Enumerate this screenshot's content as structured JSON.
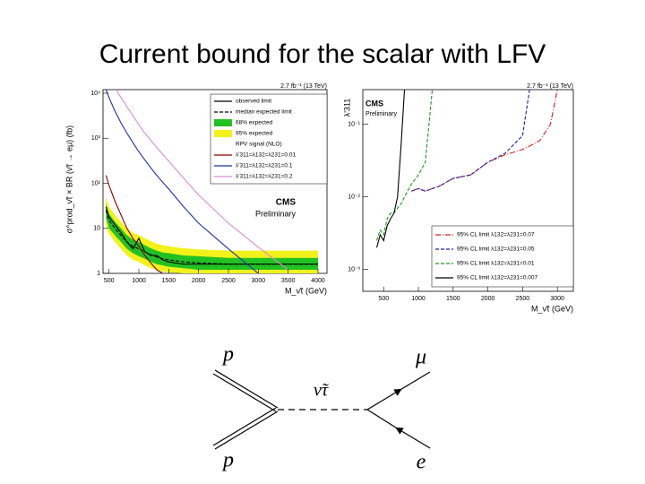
{
  "title": "Current bound for the scalar with LFV",
  "chart_data": [
    {
      "type": "line",
      "log_y": true,
      "x_label": "M_ν̃τ (GeV)",
      "y_label": "σ^prod_ν̃τ × BR (ν̃τ → eμ) (fb)",
      "annotations": [
        "2.7 fb⁻¹ (13 TeV)",
        "CMS",
        "Preliminary"
      ],
      "legend_note": "RPV signal (NLO)",
      "xlim": [
        400,
        4150
      ],
      "xticks": [
        500,
        1000,
        1500,
        2000,
        2500,
        3000,
        3500,
        4000
      ],
      "ylim": [
        1,
        12000
      ],
      "yticks": [
        1,
        10,
        {
          "value": 100,
          "label": "10²"
        },
        {
          "value": 1000,
          "label": "10³"
        },
        {
          "value": 10000,
          "label": "10⁴"
        }
      ],
      "x": [
        450,
        500,
        600,
        700,
        800,
        900,
        1000,
        1100,
        1200,
        1300,
        1400,
        1500,
        1750,
        2000,
        2500,
        3000,
        3500,
        4000
      ],
      "series": [
        {
          "name": "observed limit",
          "color": "#000000",
          "style": "solid",
          "values": [
            30,
            18,
            12,
            8,
            5,
            3.5,
            6,
            3,
            2.5,
            2.5,
            2,
            1.8,
            1.6,
            1.6,
            1.6,
            1.6,
            1.6,
            1.6
          ]
        },
        {
          "name": "median expected limit",
          "color": "#000000",
          "style": "dashed",
          "values": [
            25,
            15,
            10,
            7,
            5,
            4,
            3.5,
            3,
            2.6,
            2.3,
            2.1,
            2,
            1.8,
            1.7,
            1.6,
            1.6,
            1.6,
            1.6
          ]
        },
        {
          "name": "68% expected",
          "color": "#22c122",
          "style": "band",
          "lower": [
            17,
            10,
            7,
            5,
            3.5,
            2.8,
            2.4,
            2.1,
            1.8,
            1.6,
            1.5,
            1.4,
            1.3,
            1.2,
            1.2,
            1.2,
            1.2,
            1.2
          ],
          "upper": [
            35,
            21,
            14,
            10,
            7,
            5.6,
            5,
            4.2,
            3.6,
            3.2,
            2.9,
            2.8,
            2.5,
            2.4,
            2.2,
            2.2,
            2.2,
            2.2
          ]
        },
        {
          "name": "95% expected",
          "color": "#f2f21a",
          "style": "band",
          "lower": [
            12,
            7.5,
            5,
            3.5,
            2.5,
            2,
            1.8,
            1.5,
            1.3,
            1.2,
            1.1,
            1.05,
            1,
            1,
            1,
            1,
            1,
            1
          ],
          "upper": [
            50,
            30,
            20,
            14,
            10,
            8,
            7,
            6,
            5.2,
            4.6,
            4.2,
            4,
            3.6,
            3.4,
            3.2,
            3.2,
            3.2,
            3.2
          ]
        },
        {
          "name": "λ'311=λ132=λ231=0.01",
          "color": "#8b0000",
          "style": "solid",
          "values": [
            150,
            90,
            40,
            20,
            10,
            6,
            4,
            2.5,
            1.7,
            1.2,
            1,
            null,
            null,
            null,
            null,
            null,
            null,
            null
          ]
        },
        {
          "name": "λ'311=λ132=λ231=0.1",
          "color": "#1f2fa8",
          "style": "solid",
          "values": [
            12000,
            8000,
            4000,
            2200,
            1300,
            800,
            500,
            330,
            220,
            150,
            105,
            75,
            30,
            13,
            3.5,
            1,
            null,
            null
          ]
        },
        {
          "name": "λ'311=λ132=λ231=0.2",
          "color": "#d68fd6",
          "style": "solid",
          "values": [
            null,
            null,
            13000,
            8000,
            5000,
            3200,
            2000,
            1300,
            900,
            620,
            440,
            310,
            130,
            55,
            13,
            3.8,
            1.2,
            null
          ]
        }
      ]
    },
    {
      "type": "line",
      "log_y": true,
      "x_label": "M_ν̃τ (GeV)",
      "y_label": "λ'311",
      "annotations": [
        "2.7 fb⁻¹ (13 TeV)",
        "CMS",
        "Preliminary"
      ],
      "xlim": [
        200,
        3230
      ],
      "xticks": [
        500,
        1000,
        1500,
        2000,
        2500,
        3000
      ],
      "ylim": [
        0.0005,
        0.3
      ],
      "yticks": [
        {
          "value": 0.001,
          "label": "10⁻³"
        },
        {
          "value": 0.01,
          "label": "10⁻²"
        },
        {
          "value": 0.1,
          "label": "10⁻¹"
        }
      ],
      "x": [
        400,
        450,
        500,
        550,
        600,
        650,
        700,
        750,
        800,
        900,
        1000,
        1100,
        1200,
        1300,
        1500,
        1750,
        2000,
        2250,
        2500,
        2600,
        2750,
        2900,
        3000
      ],
      "series": [
        {
          "name": "95% CL limit λ132=λ231=0.07",
          "color": "#d62020",
          "style": "dashdot",
          "values": [
            null,
            null,
            null,
            null,
            null,
            null,
            null,
            null,
            null,
            0.012,
            0.013,
            0.012,
            0.013,
            0.014,
            0.018,
            0.02,
            0.03,
            0.038,
            0.045,
            0.05,
            0.06,
            0.1,
            0.3
          ]
        },
        {
          "name": "95% CL limit λ132=λ231=0.05",
          "color": "#2020a0",
          "style": "dashed",
          "values": [
            null,
            null,
            null,
            null,
            null,
            null,
            null,
            null,
            null,
            0.012,
            0.013,
            0.012,
            0.013,
            0.014,
            0.018,
            0.02,
            0.03,
            0.04,
            0.07,
            0.3,
            null,
            null,
            null
          ]
        },
        {
          "name": "95% CL limit λ132=λ231=0.01",
          "color": "#1f9a1f",
          "style": "dashed",
          "values": [
            0.0025,
            0.0035,
            0.003,
            0.005,
            0.006,
            0.006,
            0.007,
            0.008,
            0.01,
            0.015,
            0.02,
            0.03,
            0.3,
            null,
            null,
            null,
            null,
            null,
            null,
            null,
            null,
            null,
            null
          ]
        },
        {
          "name": "95% CL limit λ132=λ231=0.007",
          "color": "#000000",
          "style": "solid",
          "values": [
            0.002,
            0.003,
            0.0025,
            0.004,
            0.005,
            0.006,
            0.01,
            0.05,
            0.3,
            null,
            null,
            null,
            null,
            null,
            null,
            null,
            null,
            null,
            null,
            null,
            null,
            null,
            null
          ]
        }
      ]
    }
  ],
  "diagram": {
    "labels": [
      "p",
      "p",
      "ν̃τ",
      "μ",
      "e"
    ]
  }
}
